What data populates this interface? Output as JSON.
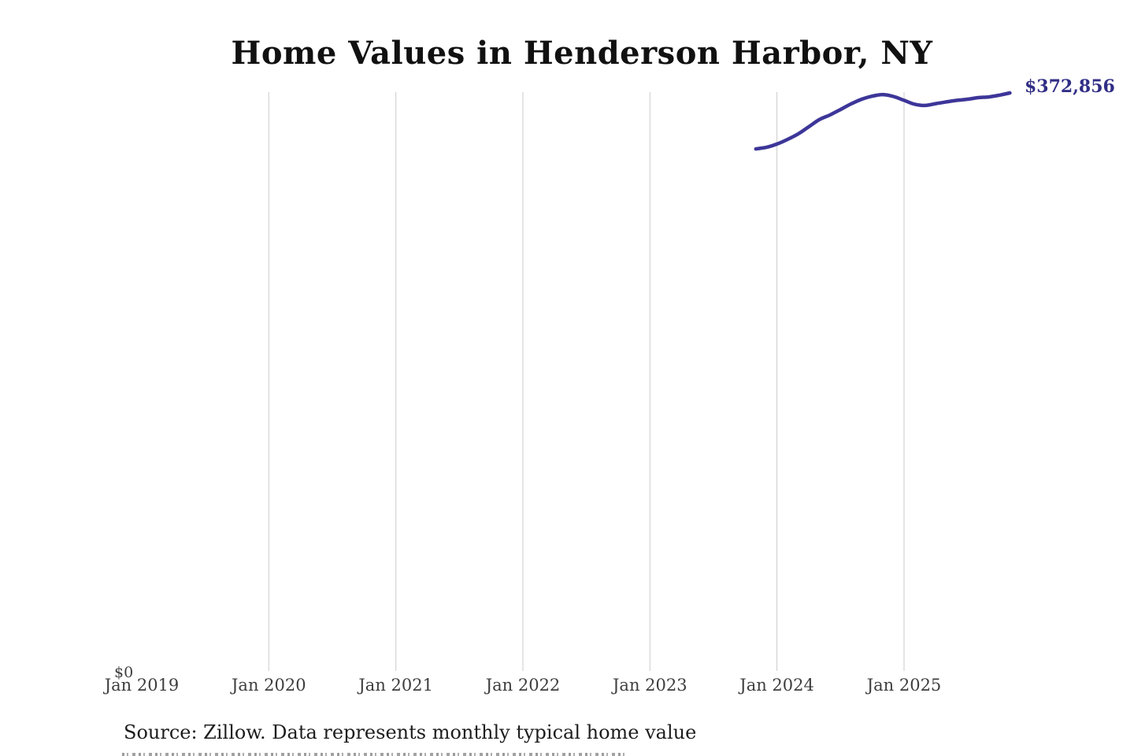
{
  "title": "Home Values in Henderson Harbor, NY",
  "end_label": "$372,856",
  "y_axis": {
    "zero_label": "$0"
  },
  "source_note": "Source: Zillow. Data represents monthly typical home value",
  "colors": {
    "line": "#3d3699",
    "end_label": "#312e85",
    "gridline": "#cbcbcb",
    "title": "#111111",
    "axis_text": "#3e3e3e",
    "source_text": "#1d1d1d"
  },
  "chart_data": {
    "type": "line",
    "title": "Home Values in Henderson Harbor, NY",
    "xlabel": "",
    "ylabel": "",
    "ylim": [
      0,
      372856
    ],
    "grid": "vertical-only",
    "legend": false,
    "annotation_last_value": "$372,856",
    "x_ticks": [
      {
        "label": "Jan 2019",
        "date": "2019-01",
        "gridline": false
      },
      {
        "label": "Jan 2020",
        "date": "2020-01",
        "gridline": true
      },
      {
        "label": "Jan 2021",
        "date": "2021-01",
        "gridline": true
      },
      {
        "label": "Jan 2022",
        "date": "2022-01",
        "gridline": true
      },
      {
        "label": "Jan 2023",
        "date": "2023-01",
        "gridline": true
      },
      {
        "label": "Jan 2024",
        "date": "2024-01",
        "gridline": true
      },
      {
        "label": "Jan 2025",
        "date": "2025-01",
        "gridline": true
      }
    ],
    "series": [
      {
        "name": "Monthly typical home value",
        "points": [
          {
            "date": "2023-11",
            "value": 336900
          },
          {
            "date": "2023-12",
            "value": 337900
          },
          {
            "date": "2024-01",
            "value": 340000
          },
          {
            "date": "2024-02",
            "value": 343000
          },
          {
            "date": "2024-03",
            "value": 346500
          },
          {
            "date": "2024-04",
            "value": 351100
          },
          {
            "date": "2024-05",
            "value": 355700
          },
          {
            "date": "2024-06",
            "value": 358700
          },
          {
            "date": "2024-07",
            "value": 362200
          },
          {
            "date": "2024-08",
            "value": 365800
          },
          {
            "date": "2024-09",
            "value": 368800
          },
          {
            "date": "2024-10",
            "value": 370800
          },
          {
            "date": "2024-11",
            "value": 371800
          },
          {
            "date": "2024-12",
            "value": 370600
          },
          {
            "date": "2025-01",
            "value": 368100
          },
          {
            "date": "2025-02",
            "value": 365600
          },
          {
            "date": "2025-03",
            "value": 364800
          },
          {
            "date": "2025-04",
            "value": 366000
          },
          {
            "date": "2025-05",
            "value": 367100
          },
          {
            "date": "2025-06",
            "value": 368100
          },
          {
            "date": "2025-07",
            "value": 368800
          },
          {
            "date": "2025-08",
            "value": 369800
          },
          {
            "date": "2025-09",
            "value": 370300
          },
          {
            "date": "2025-10",
            "value": 371400
          },
          {
            "date": "2025-11",
            "value": 372856
          }
        ]
      }
    ]
  }
}
